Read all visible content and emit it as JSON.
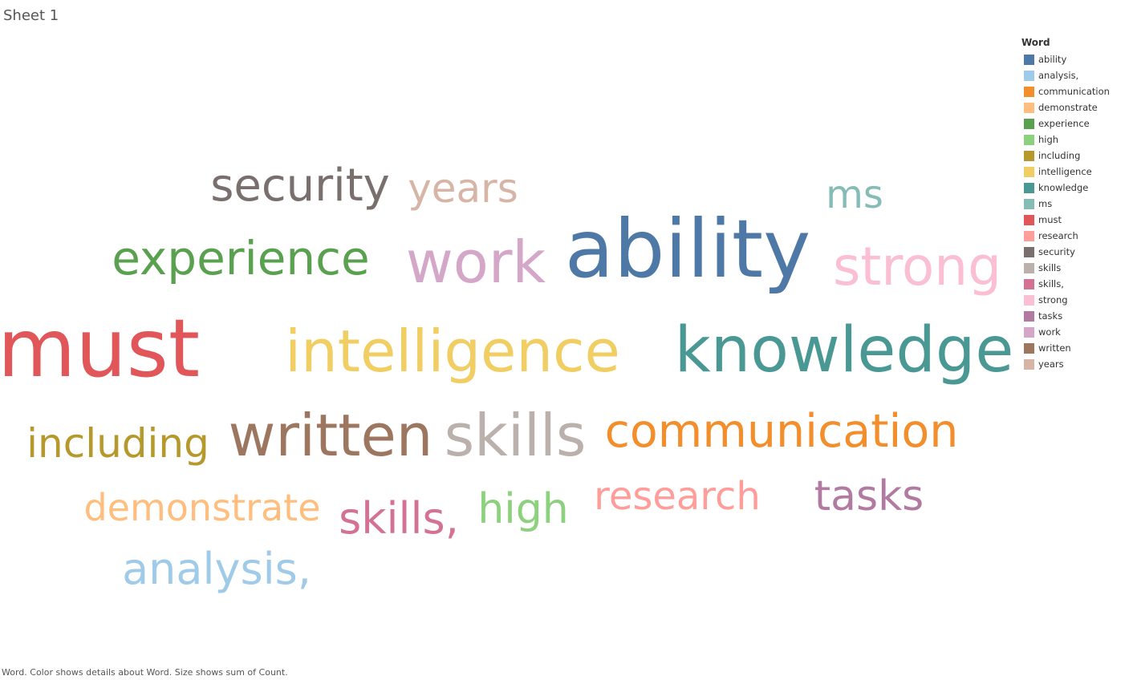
{
  "sheet_title": "Sheet 1",
  "caption": "Word.  Color shows details about Word.  Size shows sum of Count.",
  "chart_data": {
    "type": "word_cloud",
    "legend_title": "Word",
    "legend_position": "right",
    "words": [
      {
        "word": "ability",
        "color": "#4E79A7",
        "size_rank": 1
      },
      {
        "word": "analysis,",
        "color": "#A0CBE8",
        "size_rank": 11
      },
      {
        "word": "communication",
        "color": "#F28E2B",
        "size_rank": 6
      },
      {
        "word": "demonstrate",
        "color": "#FFBE7D",
        "size_rank": 12
      },
      {
        "word": "experience",
        "color": "#59A14F",
        "size_rank": 7
      },
      {
        "word": "high",
        "color": "#8CD17D",
        "size_rank": 12
      },
      {
        "word": "including",
        "color": "#B6992D",
        "size_rank": 10
      },
      {
        "word": "intelligence",
        "color": "#F1CE63",
        "size_rank": 3
      },
      {
        "word": "knowledge",
        "color": "#499894",
        "size_rank": 3
      },
      {
        "word": "ms",
        "color": "#86BCB6",
        "size_rank": 13
      },
      {
        "word": "must",
        "color": "#E15759",
        "size_rank": 1
      },
      {
        "word": "research",
        "color": "#FF9D9A",
        "size_rank": 12
      },
      {
        "word": "security",
        "color": "#79706E",
        "size_rank": 7
      },
      {
        "word": "skills",
        "color": "#BAB0AC",
        "size_rank": 5
      },
      {
        "word": "skills,",
        "color": "#D37295",
        "size_rank": 11
      },
      {
        "word": "strong",
        "color": "#FABFD2",
        "size_rank": 4
      },
      {
        "word": "tasks",
        "color": "#B07AA1",
        "size_rank": 12
      },
      {
        "word": "work",
        "color": "#D4A6C8",
        "size_rank": 4
      },
      {
        "word": "written",
        "color": "#9D7660",
        "size_rank": 5
      },
      {
        "word": "years",
        "color": "#D7B5A6",
        "size_rank": 13
      }
    ]
  }
}
